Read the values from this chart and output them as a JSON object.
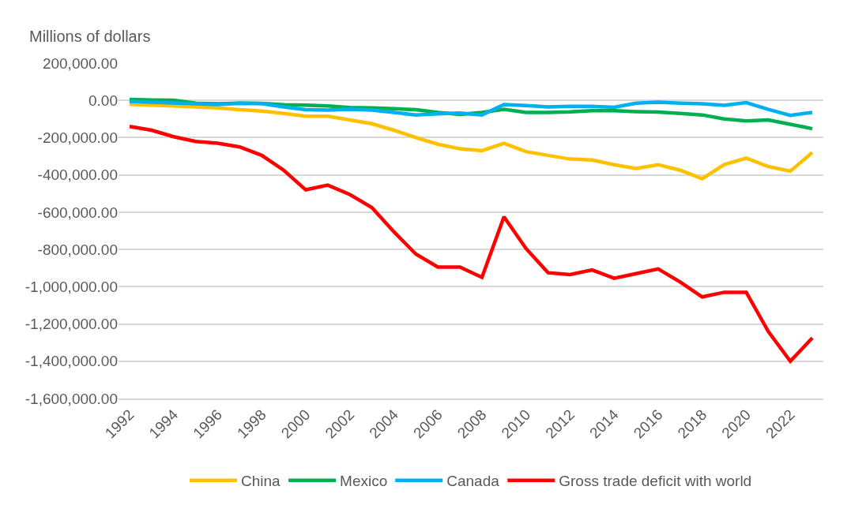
{
  "chart_data": {
    "type": "line",
    "ylabel": "Millions of dollars",
    "x": [
      1992,
      1993,
      1994,
      1995,
      1996,
      1997,
      1998,
      1999,
      2000,
      2001,
      2002,
      2003,
      2004,
      2005,
      2006,
      2007,
      2008,
      2009,
      2010,
      2011,
      2012,
      2013,
      2014,
      2015,
      2016,
      2017,
      2018,
      2019,
      2020,
      2021,
      2022,
      2023
    ],
    "series": [
      {
        "name": "China",
        "color": "#ffc000",
        "values": [
          -20000,
          -25000,
          -30000,
          -35000,
          -40000,
          -50000,
          -57000,
          -70000,
          -85000,
          -85000,
          -105000,
          -125000,
          -160000,
          -200000,
          -235000,
          -260000,
          -270000,
          -230000,
          -275000,
          -295000,
          -315000,
          -320000,
          -345000,
          -365000,
          -345000,
          -375000,
          -420000,
          -345000,
          -310000,
          -355000,
          -380000,
          -280000
        ]
      },
      {
        "name": "Mexico",
        "color": "#00b050",
        "values": [
          5000,
          2000,
          1000,
          -15000,
          -18000,
          -15000,
          -16000,
          -23000,
          -25000,
          -30000,
          -38000,
          -40000,
          -45000,
          -50000,
          -65000,
          -75000,
          -65000,
          -48000,
          -65000,
          -65000,
          -62000,
          -55000,
          -55000,
          -60000,
          -63000,
          -70000,
          -78000,
          -100000,
          -110000,
          -105000,
          -128000,
          -152000
        ]
      },
      {
        "name": "Canada",
        "color": "#00b0f0",
        "values": [
          -5000,
          -10000,
          -14000,
          -18000,
          -22000,
          -15000,
          -17000,
          -35000,
          -50000,
          -52000,
          -48000,
          -52000,
          -65000,
          -78000,
          -72000,
          -68000,
          -78000,
          -22000,
          -28000,
          -35000,
          -32000,
          -32000,
          -37000,
          -15000,
          -10000,
          -15000,
          -18000,
          -27000,
          -12000,
          -48000,
          -80000,
          -65000
        ]
      },
      {
        "name": "Gross trade deficit with world",
        "color": "#ff0000",
        "values": [
          -140000,
          -160000,
          -195000,
          -220000,
          -230000,
          -250000,
          -295000,
          -375000,
          -480000,
          -455000,
          -505000,
          -575000,
          -705000,
          -825000,
          -895000,
          -895000,
          -950000,
          -625000,
          -795000,
          -925000,
          -935000,
          -910000,
          -955000,
          -930000,
          -905000,
          -975000,
          -1055000,
          -1030000,
          -1030000,
          -1240000,
          -1400000,
          -1275000
        ]
      }
    ],
    "xlim": [
      1991.5,
      2023.5
    ],
    "xticks": [
      1992,
      1994,
      1996,
      1998,
      2000,
      2002,
      2004,
      2006,
      2008,
      2010,
      2012,
      2014,
      2016,
      2018,
      2020,
      2022
    ],
    "ylim": [
      -1600000,
      200000
    ],
    "yticks": [
      {
        "value": 200000,
        "label": "200,000.00"
      },
      {
        "value": 0,
        "label": "0.00"
      },
      {
        "value": -200000,
        "label": "-200,000.00"
      },
      {
        "value": -400000,
        "label": "-400,000.00"
      },
      {
        "value": -600000,
        "label": "-600,000.00"
      },
      {
        "value": -800000,
        "label": "-800,000.00"
      },
      {
        "value": -1000000,
        "label": "-1,000,000.00"
      },
      {
        "value": -1200000,
        "label": "-1,200,000.00"
      },
      {
        "value": -1400000,
        "label": "-1,400,000.00"
      },
      {
        "value": -1600000,
        "label": "-1,600,000.00"
      }
    ],
    "grid": "y",
    "legend": "bottom",
    "marker": "none",
    "line_style": "solid"
  }
}
